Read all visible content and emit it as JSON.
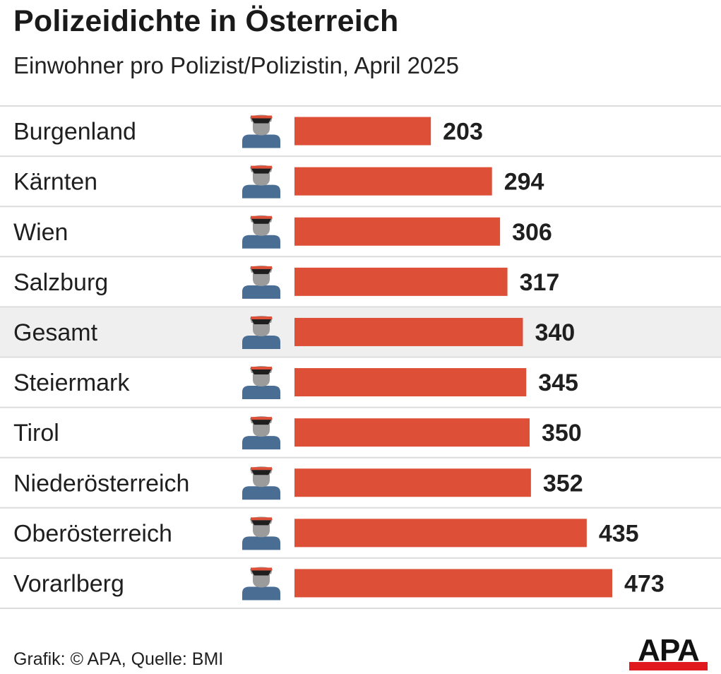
{
  "title": "Polizeidichte in Österreich",
  "subtitle": "Einwohner pro Polizist/Polizistin, April 2025",
  "footer": "Grafik: © APA, Quelle: BMI",
  "logo_text": "APA",
  "colors": {
    "bar": "#dd4f36",
    "row_highlight": "#efefef",
    "separator": "#dcdcdc",
    "icon_body": "#4a6d94",
    "icon_head": "#9b9b9b",
    "icon_cap": "#1e1e1e",
    "icon_band": "#dd4f36",
    "logo_red": "#e0191f"
  },
  "chart_data": {
    "type": "bar",
    "orientation": "horizontal",
    "categories": [
      "Burgenland",
      "Kärnten",
      "Wien",
      "Salzburg",
      "Gesamt",
      "Steiermark",
      "Tirol",
      "Niederösterreich",
      "Oberösterreich",
      "Vorarlberg"
    ],
    "values": [
      203,
      294,
      306,
      317,
      340,
      345,
      350,
      352,
      435,
      473
    ],
    "value_labels": [
      "203",
      "294",
      "306",
      "317",
      "340",
      "345",
      "350",
      "352",
      "435",
      "473"
    ],
    "highlight_category": "Gesamt",
    "row_icon": "police-officer-icon",
    "xlim": [
      0,
      473
    ],
    "grid": false,
    "legend": "none"
  }
}
